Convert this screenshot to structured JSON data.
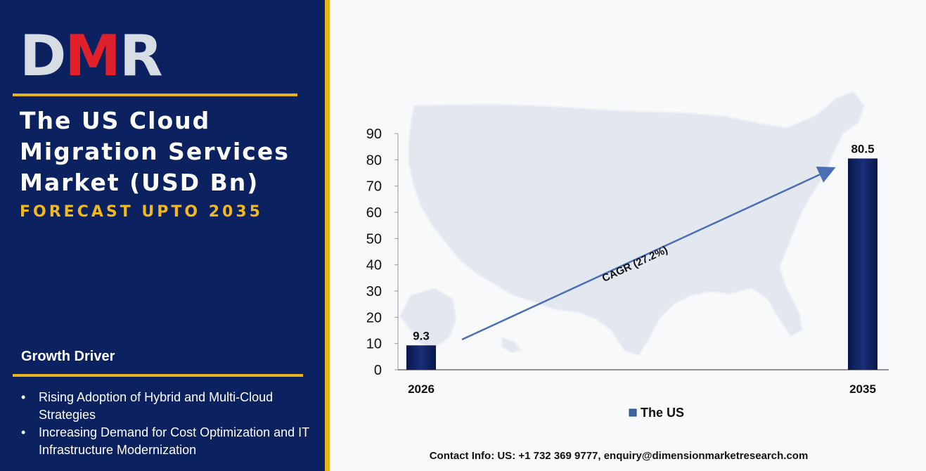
{
  "brand": {
    "logo_text_d": "D",
    "logo_text_m": "M",
    "logo_text_r": "R"
  },
  "left_panel": {
    "title": "The US Cloud Migration Services Market (USD Bn)",
    "subtitle": "FORECAST UPTO 2035",
    "growth_driver_heading": "Growth Driver",
    "growth_drivers": [
      "Rising Adoption of Hybrid and Multi-Cloud Strategies",
      "Increasing Demand for Cost Optimization and IT Infrastructure Modernization"
    ]
  },
  "chart_data": {
    "type": "bar",
    "categories": [
      "2026",
      "2035"
    ],
    "series": [
      {
        "name": "The US",
        "values": [
          9.3,
          80.5
        ],
        "color": "#0d1f5f"
      }
    ],
    "data_labels": [
      "9.3",
      "80.5"
    ],
    "y_ticks": [
      "0",
      "10",
      "20",
      "30",
      "40",
      "50",
      "60",
      "70",
      "80",
      "90"
    ],
    "ylim": [
      0,
      90
    ],
    "annotation": "CAGR (27.2%)",
    "legend_position": "bottom",
    "grid": false
  },
  "footer": {
    "contact": "Contact Info: US: +1 732 369 9777, enquiry@dimensionmarketresearch.com"
  },
  "colors": {
    "panel_bg": "#0b2160",
    "accent_gold": "#e8b41c",
    "logo_red": "#e0202a",
    "bar": "#0d1f5f",
    "arrow": "#4a6fb5"
  }
}
